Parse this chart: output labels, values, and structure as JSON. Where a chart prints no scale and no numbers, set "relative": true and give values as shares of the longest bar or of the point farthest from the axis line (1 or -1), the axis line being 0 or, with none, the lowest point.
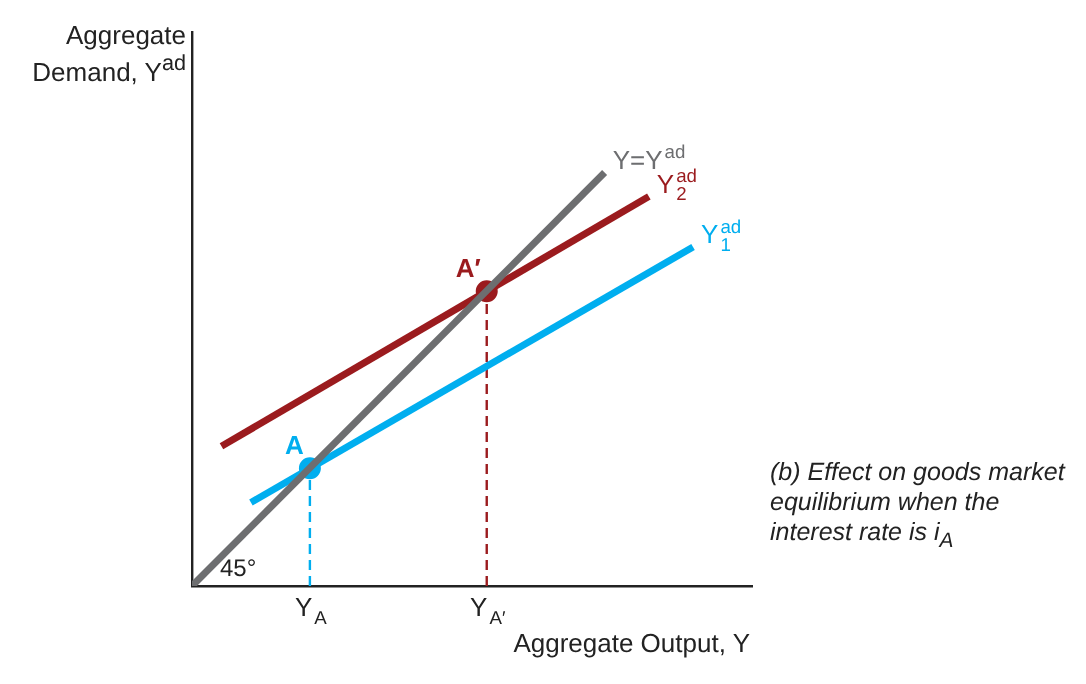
{
  "chart_data": {
    "type": "line",
    "relative": true,
    "xlabel": "Aggregate Output, Y",
    "ylabel": "Aggregate Demand, Y$^{ad}$",
    "grid": false,
    "legend": false,
    "marker": "none",
    "categories": [
      null,
      null,
      null,
      null,
      null,
      null,
      null,
      null,
      "Y$_{A}$",
      null,
      null,
      null,
      null,
      null,
      null,
      null,
      null,
      null,
      null,
      null,
      "Y$_{A′}$",
      null,
      null,
      null,
      null,
      null,
      null,
      null,
      null,
      null,
      null,
      null,
      null,
      null,
      null,
      null,
      null,
      null,
      null
    ],
    "annotations": [
      "45°",
      "(b) Effect on goods market equilibrium when the interest rate is i$_{A}$"
    ],
    "series": [
      {
        "name": "Y=Y$^{ad}$",
        "type": "line",
        "color": "#6d6e70",
        "values": [
          0,
          null,
          null,
          null,
          null,
          null,
          null,
          null,
          null,
          null,
          null,
          null,
          null,
          null,
          null,
          null,
          null,
          null,
          null,
          null,
          null,
          null,
          null,
          null,
          null,
          null,
          null,
          null,
          1,
          null,
          null,
          null,
          null,
          null,
          null,
          null,
          null,
          null,
          null
        ]
      },
      {
        "name": "Y$^{ad}$$_{2}$",
        "type": "line",
        "color": "#9b1b1e",
        "values": [
          null,
          null,
          0.338,
          null,
          null,
          null,
          null,
          null,
          null,
          null,
          null,
          null,
          null,
          null,
          null,
          null,
          null,
          null,
          null,
          null,
          null,
          null,
          null,
          null,
          null,
          null,
          null,
          null,
          null,
          null,
          null,
          0.942,
          null,
          null,
          null,
          null,
          null,
          null,
          null
        ]
      },
      {
        "name": "Y$^{ad}$$_{1}$",
        "type": "line",
        "color": "#00aeef",
        "values": [
          null,
          null,
          null,
          null,
          0.202,
          null,
          null,
          null,
          null,
          null,
          null,
          null,
          null,
          null,
          null,
          null,
          null,
          null,
          null,
          null,
          null,
          null,
          null,
          null,
          null,
          null,
          null,
          null,
          null,
          null,
          null,
          null,
          null,
          null,
          0.82,
          null,
          null,
          null,
          null
        ]
      },
      {
        "type": "line",
        "line_style": "dashed",
        "color": "#00aeef",
        "x": [
          "Y$_{A}$",
          "Y$_{A}$"
        ],
        "values": [
          0,
          0.285
        ]
      },
      {
        "type": "line",
        "line_style": "dashed",
        "color": "#9b1b1e",
        "x": [
          "Y$_{A′}$",
          "Y$_{A′}$"
        ],
        "values": [
          0,
          0.713
        ]
      },
      {
        "name": "A",
        "type": "scatter",
        "marker": "circle",
        "color": "#00aeef",
        "x": [
          "Y$_{A}$"
        ],
        "values": [
          0.285
        ]
      },
      {
        "name": "A′",
        "type": "scatter",
        "marker": "circle",
        "color": "#9b1b1e",
        "x": [
          "Y$_{A′}$"
        ],
        "values": [
          0.713
        ]
      }
    ]
  }
}
